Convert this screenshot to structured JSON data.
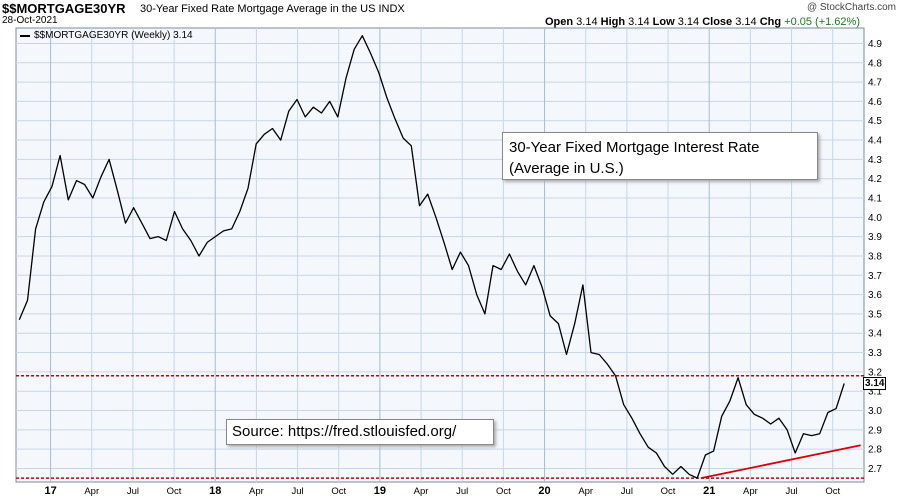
{
  "header": {
    "symbol": "$$MORTGAGE30YR",
    "subtitle": "30-Year Fixed Rate Mortgage Average in the US  INDX",
    "date": "28-Oct-2021",
    "open_label": "Open",
    "open": "3.14",
    "high_label": "High",
    "high": "3.14",
    "low_label": "Low",
    "low": "3.14",
    "close_label": "Close",
    "close": "3.14",
    "chg_label": "Chg",
    "chg": "+0.05 (+1.62%)",
    "brand": "@ StockCharts.com"
  },
  "legend": {
    "label": "$$MORTGAGE30YR (Weekly) 3.14"
  },
  "annotations": {
    "callout_line1": "30-Year Fixed Mortgage Interest Rate",
    "callout_line2": "(Average in U.S.)",
    "source": "Source: https://fred.stlouisfed.org/"
  },
  "colors": {
    "line": "#000000",
    "reference": "#cc0000",
    "trend": "#dd0000",
    "grid": "#c8d6e6",
    "panel_bg": "#f4f8fd"
  },
  "chart_data": {
    "type": "line",
    "xlabel": "",
    "ylabel": "",
    "x_start": "2016-10",
    "x_end": "2021-10",
    "ylim": [
      2.63,
      4.98
    ],
    "grid": true,
    "y_ticks": [
      2.7,
      2.8,
      2.9,
      3.0,
      3.1,
      3.2,
      3.3,
      3.4,
      3.5,
      3.6,
      3.7,
      3.8,
      3.9,
      4.0,
      4.1,
      4.2,
      4.3,
      4.4,
      4.5,
      4.6,
      4.7,
      4.8,
      4.9
    ],
    "x_ticks": [
      "17",
      "Apr",
      "Jul",
      "Oct",
      "18",
      "Apr",
      "Jul",
      "Oct",
      "19",
      "Apr",
      "Jul",
      "Oct",
      "20",
      "Apr",
      "Jul",
      "Oct",
      "21",
      "Apr",
      "Jul",
      "Oct"
    ],
    "x_tick_major": [
      "17",
      "18",
      "19",
      "20",
      "21"
    ],
    "last_value_label": "3.14",
    "series": [
      {
        "values": [
          3.47,
          3.57,
          3.94,
          4.08,
          4.16,
          4.32,
          4.09,
          4.19,
          4.17,
          4.1,
          4.21,
          4.3,
          4.14,
          3.97,
          4.05,
          3.97,
          3.89,
          3.9,
          3.88,
          4.03,
          3.94,
          3.88,
          3.8,
          3.87,
          3.9,
          3.93,
          3.94,
          4.03,
          4.15,
          4.38,
          4.43,
          4.46,
          4.4,
          4.55,
          4.61,
          4.52,
          4.57,
          4.54,
          4.6,
          4.52,
          4.72,
          4.87,
          4.94,
          4.85,
          4.75,
          4.62,
          4.51,
          4.41,
          4.37,
          4.06,
          4.12,
          4.0,
          3.87,
          3.73,
          3.82,
          3.75,
          3.6,
          3.5,
          3.75,
          3.73,
          3.81,
          3.72,
          3.65,
          3.75,
          3.64,
          3.49,
          3.45,
          3.29,
          3.45,
          3.65,
          3.3,
          3.29,
          3.24,
          3.18,
          3.03,
          2.96,
          2.88,
          2.81,
          2.78,
          2.71,
          2.67,
          2.71,
          2.67,
          2.65,
          2.77,
          2.79,
          2.97,
          3.05,
          3.17,
          3.03,
          2.98,
          2.96,
          2.93,
          2.96,
          2.9,
          2.78,
          2.88,
          2.87,
          2.88,
          2.99,
          3.01,
          3.14
        ]
      }
    ],
    "reference_lines": [
      3.18,
      2.65
    ],
    "trendline": {
      "from": [
        2020.95,
        2.65
      ],
      "to": [
        2021.92,
        2.82
      ]
    }
  }
}
